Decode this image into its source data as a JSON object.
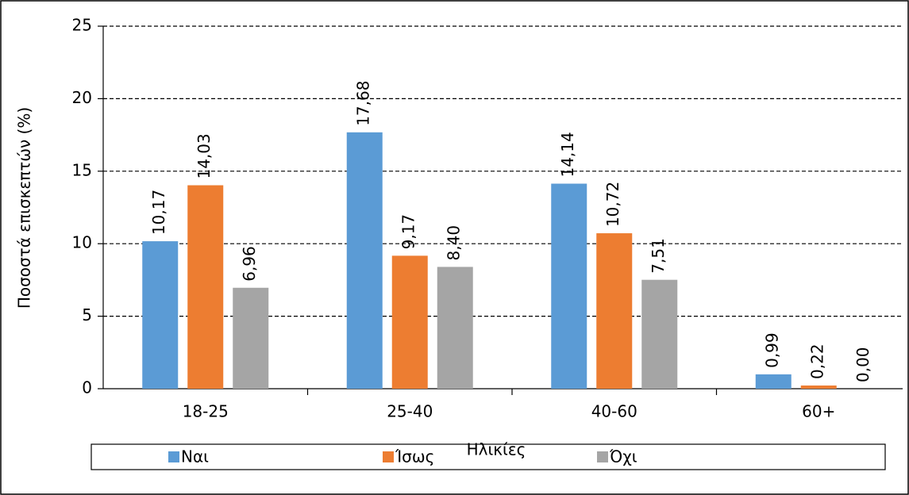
{
  "chart_data": {
    "type": "bar",
    "x_label": "Ηλικίες",
    "y_label": "Ποσοστά επισκεπτών (%)",
    "categories": [
      "18-25",
      "25-40",
      "40-60",
      "60+"
    ],
    "series": [
      {
        "name": "Ναι",
        "color": "#5b9bd5",
        "values": [
          10.17,
          17.68,
          14.14,
          0.99
        ],
        "value_labels": [
          "10,17",
          "17,68",
          "14,14",
          "0,99"
        ]
      },
      {
        "name": "Ίσως",
        "color": "#ed7d31",
        "values": [
          14.03,
          9.17,
          10.72,
          0.22
        ],
        "value_labels": [
          "14,03",
          "9,17",
          "10,72",
          "0,22"
        ]
      },
      {
        "name": "Όχι",
        "color": "#a5a5a5",
        "values": [
          6.96,
          8.4,
          7.51,
          0.0
        ],
        "value_labels": [
          "6,96",
          "8,40",
          "7,51",
          "0,00"
        ]
      }
    ],
    "ylim": [
      0,
      25
    ],
    "yticks": [
      0,
      5,
      10,
      15,
      20,
      25
    ],
    "grid": true,
    "legend": "bottom"
  }
}
